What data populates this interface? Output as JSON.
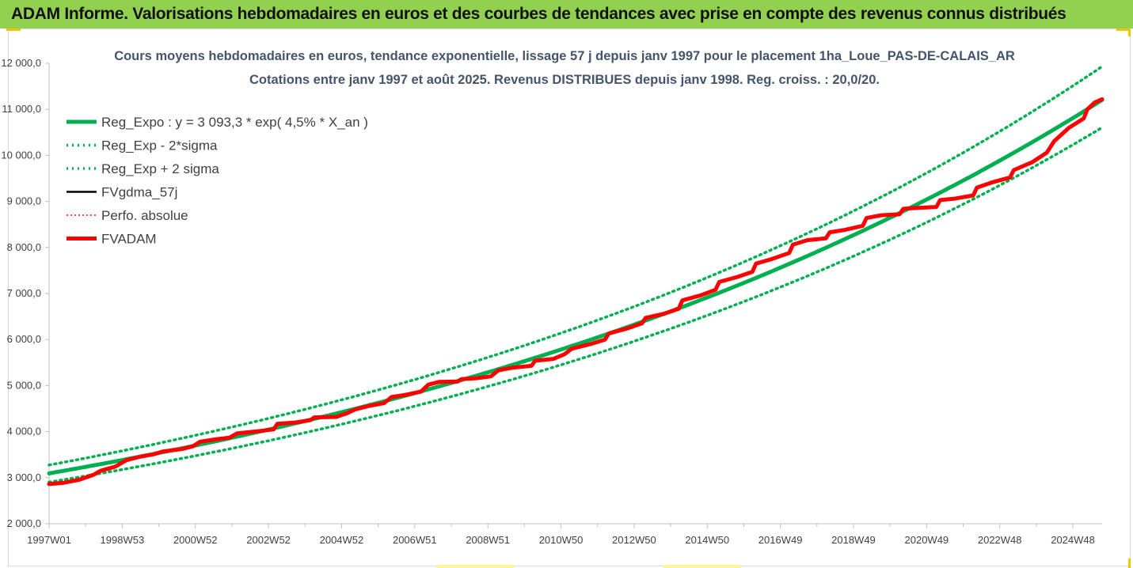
{
  "banner": "ADAM Informe. Valorisations hebdomadaires en euros et des courbes de tendances avec prise en compte des revenus connus distribués",
  "chart_data": {
    "type": "line",
    "title": "Cours moyens hebdomadaires en euros, tendance exponentielle, lissage 57 j depuis janv 1997 pour le placement 1ha_Loue_PAS-DE-CALAIS_AR",
    "subtitle": "Cotations entre janv 1997 et août 2025. Revenus DISTRIBUES depuis janv 1998. Reg. croiss. : 20,0/20.",
    "ylim": [
      2000,
      12000
    ],
    "y_ticks": [
      "2 000,0",
      "3 000,0",
      "4 000,0",
      "5 000,0",
      "6 000,0",
      "7 000,0",
      "8 000,0",
      "9 000,0",
      "10 000,0",
      "11 000,0",
      "12 000,0"
    ],
    "x_ticks": [
      "1997W01",
      "1998W53",
      "2000W52",
      "2002W52",
      "2004W52",
      "2006W51",
      "2008W51",
      "2010W50",
      "2012W50",
      "2014W50",
      "2016W49",
      "2018W49",
      "2020W49",
      "2022W48",
      "2024W48"
    ],
    "x_range_years": [
      1997.0,
      2025.6
    ],
    "legend_position": "top-left",
    "grid": false,
    "colors": {
      "green": "#00b050",
      "black": "#000000",
      "red": "#ff0000"
    },
    "series": [
      {
        "name": "Reg_Expo : y = 3 093,3 * exp( 4,5% *  X_an )",
        "style": "solid-thick",
        "color": "#00b050",
        "formula": {
          "a": 3093.3,
          "r": 0.045
        }
      },
      {
        "name": "Reg_Exp - 2*sigma",
        "style": "dotted",
        "color": "#00b050",
        "formula": {
          "a": 2903,
          "r": 0.0453
        }
      },
      {
        "name": "Reg_Exp + 2 sigma",
        "style": "dotted",
        "color": "#00b050",
        "formula": {
          "a": 3275,
          "r": 0.0452
        }
      },
      {
        "name": "FVgdma_57j",
        "style": "solid",
        "color": "#000000"
      },
      {
        "name": "Perfo. absolue",
        "style": "dotted-thin",
        "color": "#ff0000"
      },
      {
        "name": "FVADAM",
        "style": "solid-thick",
        "color": "#ff0000",
        "points": [
          [
            1997.0,
            2860
          ],
          [
            1997.4,
            2890
          ],
          [
            1997.8,
            2950
          ],
          [
            1998.2,
            3060
          ],
          [
            1998.4,
            3150
          ],
          [
            1998.8,
            3240
          ],
          [
            1999.1,
            3380
          ],
          [
            1999.5,
            3460
          ],
          [
            1999.8,
            3500
          ],
          [
            2000.1,
            3570
          ],
          [
            2000.6,
            3620
          ],
          [
            2000.9,
            3680
          ],
          [
            2001.1,
            3780
          ],
          [
            2001.5,
            3830
          ],
          [
            2001.9,
            3870
          ],
          [
            2002.1,
            3960
          ],
          [
            2002.7,
            4010
          ],
          [
            2003.1,
            4050
          ],
          [
            2003.2,
            4170
          ],
          [
            2003.7,
            4200
          ],
          [
            2004.1,
            4250
          ],
          [
            2004.2,
            4310
          ],
          [
            2004.8,
            4320
          ],
          [
            2005.1,
            4400
          ],
          [
            2005.3,
            4480
          ],
          [
            2005.7,
            4560
          ],
          [
            2006.1,
            4620
          ],
          [
            2006.3,
            4750
          ],
          [
            2006.7,
            4800
          ],
          [
            2007.1,
            4870
          ],
          [
            2007.3,
            5020
          ],
          [
            2007.6,
            5080
          ],
          [
            2008.1,
            5090
          ],
          [
            2008.2,
            5140
          ],
          [
            2008.6,
            5160
          ],
          [
            2009.0,
            5200
          ],
          [
            2009.2,
            5330
          ],
          [
            2009.6,
            5390
          ],
          [
            2010.1,
            5430
          ],
          [
            2010.2,
            5540
          ],
          [
            2010.7,
            5580
          ],
          [
            2011.0,
            5680
          ],
          [
            2011.2,
            5800
          ],
          [
            2011.7,
            5900
          ],
          [
            2012.1,
            6000
          ],
          [
            2012.2,
            6130
          ],
          [
            2012.7,
            6240
          ],
          [
            2013.1,
            6350
          ],
          [
            2013.2,
            6470
          ],
          [
            2013.7,
            6560
          ],
          [
            2014.1,
            6670
          ],
          [
            2014.2,
            6850
          ],
          [
            2014.7,
            6960
          ],
          [
            2015.1,
            7080
          ],
          [
            2015.2,
            7250
          ],
          [
            2015.7,
            7360
          ],
          [
            2016.1,
            7470
          ],
          [
            2016.2,
            7650
          ],
          [
            2016.6,
            7740
          ],
          [
            2017.1,
            7880
          ],
          [
            2017.2,
            8060
          ],
          [
            2017.6,
            8160
          ],
          [
            2018.1,
            8200
          ],
          [
            2018.2,
            8330
          ],
          [
            2018.6,
            8380
          ],
          [
            2019.1,
            8470
          ],
          [
            2019.2,
            8640
          ],
          [
            2019.6,
            8700
          ],
          [
            2020.1,
            8720
          ],
          [
            2020.2,
            8840
          ],
          [
            2020.6,
            8860
          ],
          [
            2021.1,
            8880
          ],
          [
            2021.2,
            9030
          ],
          [
            2021.6,
            9060
          ],
          [
            2022.1,
            9130
          ],
          [
            2022.2,
            9300
          ],
          [
            2022.6,
            9410
          ],
          [
            2023.1,
            9520
          ],
          [
            2023.2,
            9680
          ],
          [
            2023.7,
            9850
          ],
          [
            2024.1,
            10060
          ],
          [
            2024.3,
            10310
          ],
          [
            2024.7,
            10600
          ],
          [
            2025.1,
            10800
          ],
          [
            2025.2,
            11000
          ],
          [
            2025.4,
            11150
          ],
          [
            2025.6,
            11220
          ]
        ]
      }
    ]
  }
}
